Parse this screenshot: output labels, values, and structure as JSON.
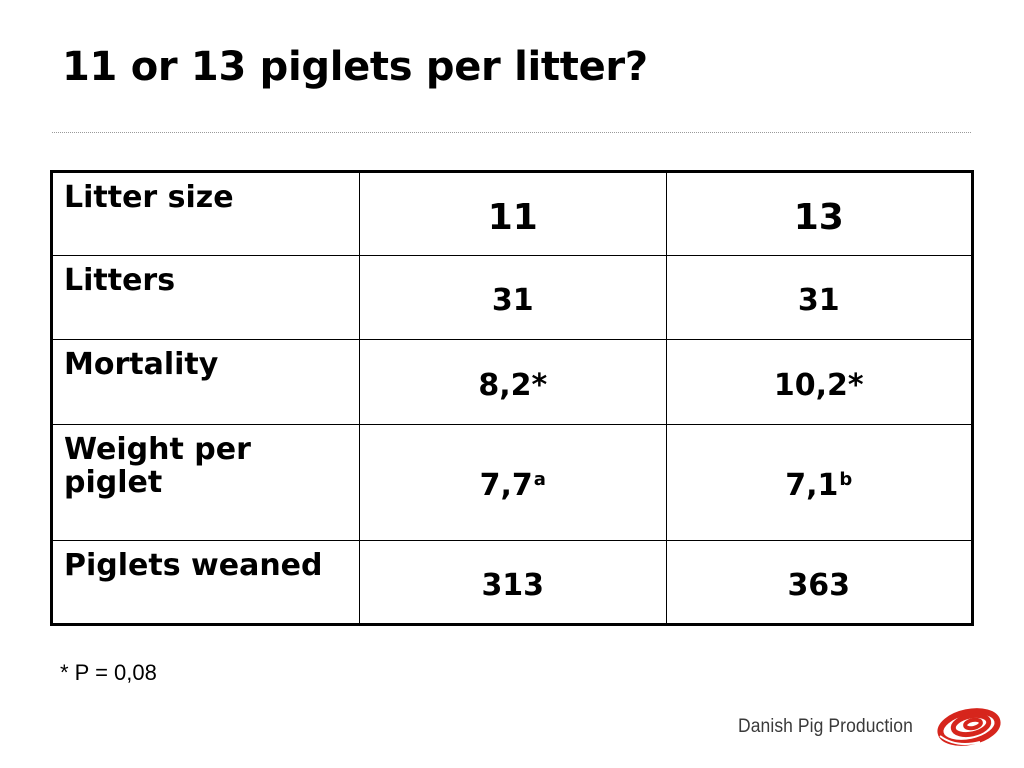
{
  "slide": {
    "title": "11 or 13 piglets per litter?"
  },
  "table": {
    "rows": [
      {
        "label": "Litter size",
        "values": [
          "11",
          "13"
        ],
        "marks": [
          "",
          ""
        ]
      },
      {
        "label": "Litters",
        "values": [
          "31",
          "31"
        ],
        "marks": [
          "",
          ""
        ]
      },
      {
        "label": "Mortality",
        "values": [
          "8,2*",
          "10,2*"
        ],
        "marks": [
          "",
          ""
        ]
      },
      {
        "label": "Weight per piglet",
        "values": [
          "7,7",
          "7,1"
        ],
        "marks": [
          "a",
          "b"
        ]
      },
      {
        "label": "Piglets weaned",
        "values": [
          "313",
          "363"
        ],
        "marks": [
          "",
          ""
        ]
      }
    ]
  },
  "footnote": "* P = 0,08",
  "brand": {
    "name": "Danish Pig Production",
    "logo_icon": "red-spiral-logo-icon",
    "color": "#d6251c"
  }
}
